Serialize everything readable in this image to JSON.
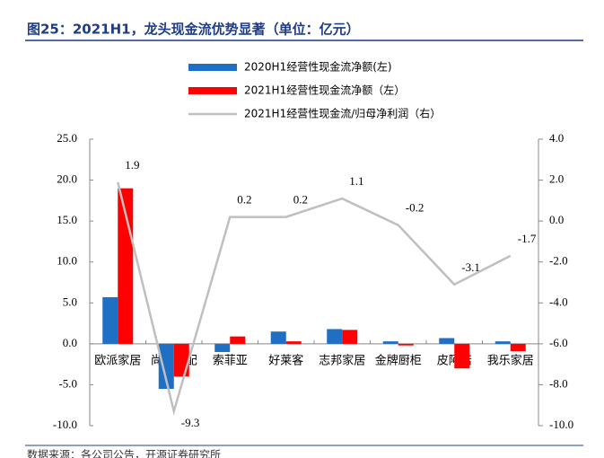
{
  "chart_data": {
    "type": "bar",
    "title": "图25：2021H1，龙头现金流优势显著（单位：亿元）",
    "source": "数据来源：各公司公告，开源证券研究所",
    "categories": [
      "欧派家居",
      "尚品宅配",
      "索菲亚",
      "好莱客",
      "志邦家居",
      "金牌厨柜",
      "皮阿诺",
      "我乐家居"
    ],
    "series": [
      {
        "name": "2020H1经营性现金流净额(左)",
        "type": "bar",
        "color": "#1f6fc5",
        "values": [
          5.7,
          -5.5,
          -1.0,
          1.5,
          1.8,
          0.3,
          0.7,
          0.3
        ]
      },
      {
        "name": "2021H1经营性现金流净额（左）",
        "type": "bar",
        "color": "#ff0000",
        "values": [
          19.0,
          -4.0,
          0.9,
          0.3,
          1.7,
          -0.2,
          -3.0,
          -0.9
        ]
      },
      {
        "name": "2021H1经营性现金流/归母净利润（右）",
        "type": "line",
        "axis": "y2",
        "color": "#bfbfbf",
        "show_values": true,
        "values": [
          1.9,
          -9.3,
          0.2,
          0.2,
          1.1,
          -0.2,
          -3.1,
          -1.7
        ]
      }
    ],
    "ylim": [
      -10,
      25
    ],
    "yticks": [
      {
        "value": -10,
        "label": "-10.0"
      },
      {
        "value": -5,
        "label": "-5.0"
      },
      {
        "value": 0,
        "label": "0.0"
      },
      {
        "value": 5,
        "label": "5.0"
      },
      {
        "value": 10,
        "label": "10.0"
      },
      {
        "value": 15,
        "label": "15.0"
      },
      {
        "value": 20,
        "label": "20.0"
      },
      {
        "value": 25,
        "label": "25.0"
      }
    ],
    "y2lim": [
      -10,
      4
    ],
    "y2ticks": [
      {
        "value": -10,
        "label": "-10.0"
      },
      {
        "value": -8,
        "label": "-8.0"
      },
      {
        "value": -6,
        "label": "-6.0"
      },
      {
        "value": -4,
        "label": "-4.0"
      },
      {
        "value": -2,
        "label": "-2.0"
      },
      {
        "value": 0,
        "label": "0.0"
      },
      {
        "value": 2,
        "label": "2.0"
      },
      {
        "value": 4,
        "label": "4.0"
      }
    ]
  }
}
